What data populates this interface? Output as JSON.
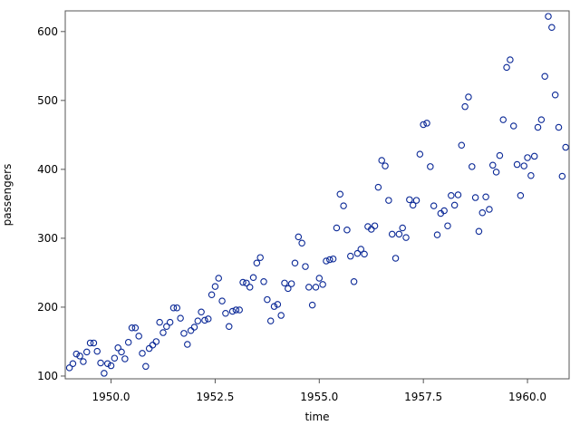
{
  "chart_data": {
    "type": "scatter",
    "xlabel": "time",
    "ylabel": "passengers",
    "xlim": [
      1948.9,
      1961.0
    ],
    "ylim": [
      96,
      630
    ],
    "xticks": [
      1950.0,
      1952.5,
      1955.0,
      1957.5,
      1960.0
    ],
    "xtick_labels": [
      "1950.0",
      "1952.5",
      "1955.0",
      "1957.5",
      "1960.0"
    ],
    "yticks": [
      100,
      200,
      300,
      400,
      500,
      600
    ],
    "ytick_labels": [
      "100",
      "200",
      "300",
      "400",
      "500",
      "600"
    ],
    "grid": false,
    "legend": "none",
    "marker": "open-circle",
    "colors": {
      "marker": "#0a2896",
      "frame": "#555555",
      "background": "#ffffff"
    },
    "x_start": 1949.0,
    "x_step": 0.08333333,
    "values": [
      112,
      118,
      132,
      129,
      121,
      135,
      148,
      148,
      136,
      119,
      104,
      118,
      115,
      126,
      141,
      135,
      125,
      149,
      170,
      170,
      158,
      133,
      114,
      140,
      145,
      150,
      178,
      163,
      172,
      178,
      199,
      199,
      184,
      162,
      146,
      166,
      171,
      180,
      193,
      181,
      183,
      218,
      230,
      242,
      209,
      191,
      172,
      194,
      196,
      196,
      236,
      235,
      229,
      243,
      264,
      272,
      237,
      211,
      180,
      201,
      204,
      188,
      235,
      227,
      234,
      264,
      302,
      293,
      259,
      229,
      203,
      229,
      242,
      233,
      267,
      269,
      270,
      315,
      364,
      347,
      312,
      274,
      237,
      278,
      284,
      277,
      317,
      313,
      318,
      374,
      413,
      405,
      355,
      306,
      271,
      306,
      315,
      301,
      356,
      348,
      355,
      422,
      465,
      467,
      404,
      347,
      305,
      336,
      340,
      318,
      362,
      348,
      363,
      435,
      491,
      505,
      404,
      359,
      310,
      337,
      360,
      342,
      406,
      396,
      420,
      472,
      548,
      559,
      463,
      407,
      362,
      405,
      417,
      391,
      419,
      461,
      472,
      535,
      622,
      606,
      508,
      461,
      390,
      432
    ]
  }
}
